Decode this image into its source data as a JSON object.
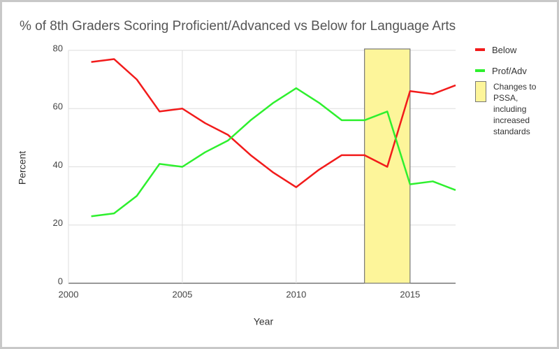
{
  "chart_data": {
    "type": "line",
    "title": "% of 8th Graders Scoring Proficient/Advanced vs Below for Language Arts",
    "x_label": "Year",
    "y_label": "Percent",
    "x": [
      2001,
      2002,
      2003,
      2004,
      2005,
      2006,
      2007,
      2008,
      2009,
      2010,
      2011,
      2012,
      2013,
      2014,
      2015,
      2016,
      2017
    ],
    "series": [
      {
        "name": "Below",
        "color": "#f21b1b",
        "values": [
          76,
          77,
          70,
          59,
          60,
          55,
          51,
          44,
          38,
          33,
          39,
          44,
          44,
          40,
          66,
          65,
          68
        ]
      },
      {
        "name": "Prof/Adv",
        "color": "#2ef02e",
        "values": [
          23,
          24,
          30,
          41,
          40,
          45,
          49,
          56,
          62,
          67,
          62,
          56,
          56,
          59,
          34,
          35,
          32
        ]
      }
    ],
    "band": {
      "x0": 2013,
      "x1": 2015,
      "label": "Changes to PSSA, including increased standards",
      "color": "#fdf59a"
    },
    "xlim": [
      2000,
      2017
    ],
    "xticks": [
      2000,
      2005,
      2010,
      2015
    ],
    "ylim": [
      0,
      80
    ],
    "yticks": [
      0,
      20,
      40,
      60,
      80
    ],
    "grid": true,
    "legend": "right"
  }
}
